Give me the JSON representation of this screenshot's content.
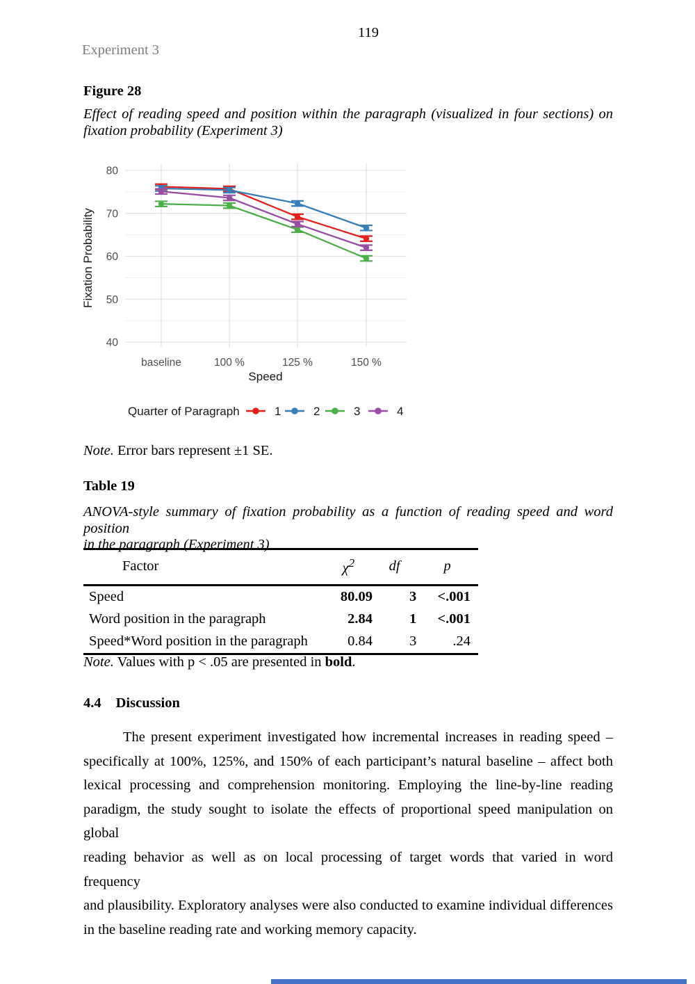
{
  "page": {
    "number": "119",
    "running_head": "Experiment 3"
  },
  "figure": {
    "label": "Figure 28",
    "caption_line1": "Effect of reading speed and position within the paragraph (visualized in four sections) on",
    "caption_line2": "fixation probability (Experiment 3)",
    "note_label": "Note.",
    "note_text": " Error bars represent ±1 SE."
  },
  "chart_data": {
    "type": "line",
    "xlabel": "Speed",
    "ylabel": "Fixation Probability",
    "categories": [
      "baseline",
      "100 %",
      "125 %",
      "150 %"
    ],
    "yticks": [
      40,
      50,
      60,
      70,
      80
    ],
    "minor_gridlines": [
      45,
      55,
      65,
      75
    ],
    "ylim": [
      38,
      82
    ],
    "grid": true,
    "legend_position": "bottom",
    "legend_title": "Quarter of Paragraph",
    "error_bar_se": 0.6,
    "series": [
      {
        "name": "1",
        "color": "#e2201c",
        "values": [
          76.2,
          75.7,
          69.2,
          64.1
        ]
      },
      {
        "name": "2",
        "color": "#377eb8",
        "values": [
          75.8,
          75.4,
          72.3,
          66.6
        ]
      },
      {
        "name": "3",
        "color": "#4daf4a",
        "values": [
          72.2,
          71.8,
          66.2,
          59.5
        ]
      },
      {
        "name": "4",
        "color": "#984ea3",
        "values": [
          75.1,
          73.6,
          67.5,
          62.0
        ]
      }
    ]
  },
  "table": {
    "label": "Table 19",
    "caption_line1": "ANOVA-style summary of fixation probability as a function of reading speed and word position",
    "caption_line2": "in the paragraph (Experiment 3)",
    "headers": {
      "factor": "Factor",
      "chi": "χ",
      "chi_sup": "2",
      "df": "df",
      "p": "p"
    },
    "rows": [
      {
        "factor": "Speed",
        "chi2": "80.09",
        "df": "3",
        "p": "<.001",
        "bold": true
      },
      {
        "factor": "Word position in the paragraph",
        "chi2": "2.84",
        "df": "1",
        "p": "<.001",
        "bold": true
      },
      {
        "factor": "Speed*Word position in the paragraph",
        "chi2": "0.84",
        "df": "3",
        "p": ".24",
        "bold": false
      }
    ],
    "note_label": "Note.",
    "note_pre": " Values with p < .05 are presented in ",
    "note_bold": "bold",
    "note_post": "."
  },
  "discussion": {
    "number": "4.4",
    "title": "Discussion",
    "lines": [
      "The present experiment investigated how incremental increases in reading speed –",
      "specifically at 100%, 125%, and 150% of each participant’s natural baseline – affect both",
      "lexical processing and comprehension monitoring. Employing the line-by-line reading",
      "paradigm, the study sought to isolate the effects of proportional speed manipulation on global",
      "reading behavior as well as on local processing of target words that varied in word frequency",
      "and plausibility. Exploratory analyses were also conducted to examine individual differences",
      "in the baseline reading rate and working memory capacity."
    ]
  },
  "ui": {
    "scrollbar_color": "#4472c4"
  }
}
